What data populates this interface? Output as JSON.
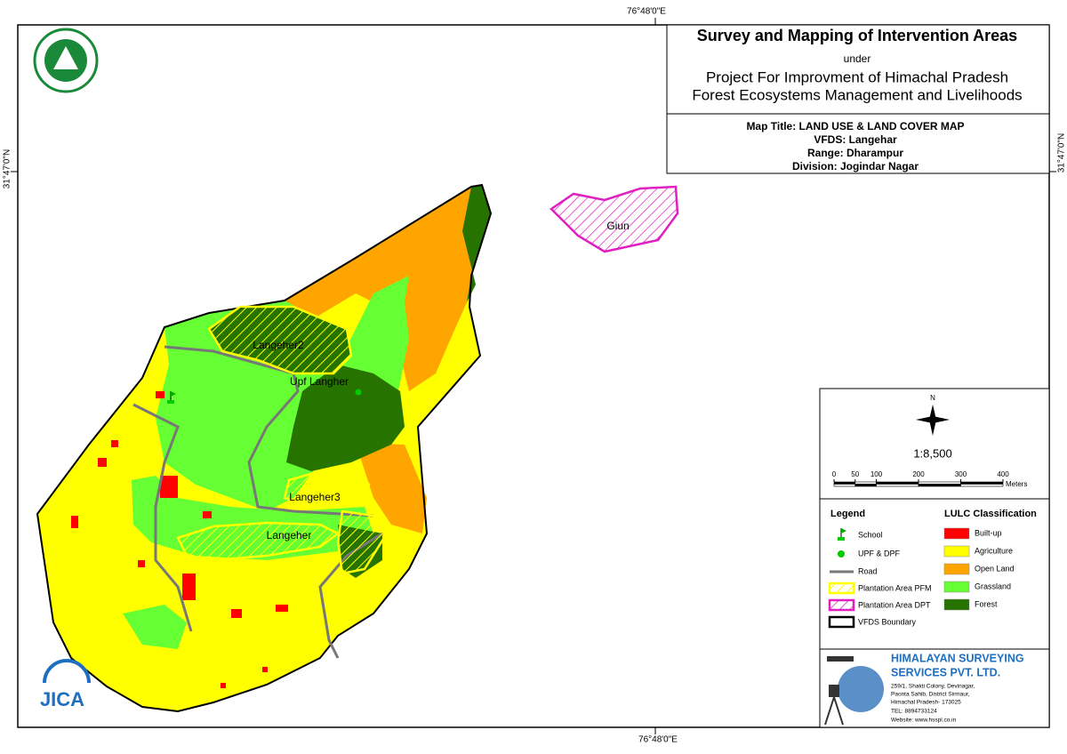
{
  "coordinates": {
    "top": "76°48'0\"E",
    "bottom": "76°48'0\"E",
    "left": "31°47'0\"N",
    "right": "31°47'0\"N"
  },
  "header": {
    "title": "Survey and Mapping of Intervention Areas",
    "under": "under",
    "project": [
      "Project For Improvment of Himachal Pradesh",
      "Forest Ecosystems Management and Livelihoods"
    ]
  },
  "map_info": [
    "Map Title: LAND USE & LAND COVER MAP",
    "VFDS: Langehar",
    "Range: Dharampur",
    "Division: Jogindar Nagar"
  ],
  "map_labels": [
    "Langeher2",
    "Upf Langher",
    "Langeher3",
    "Langeher",
    "Giun"
  ],
  "north": "N",
  "scale": {
    "ratio": "1:8,500",
    "ticks": [
      0,
      50,
      100,
      200,
      300,
      400
    ],
    "unit": "Meters"
  },
  "legend": {
    "title": "Legend",
    "items": [
      "School",
      "UPF & DPF",
      "Road",
      "Plantation Area PFM",
      "Plantation Area DPT",
      "VFDS Boundary"
    ]
  },
  "lulc": {
    "title": "LULC Classification",
    "items": [
      {
        "label": "Built-up",
        "color": "#ff0000"
      },
      {
        "label": "Agriculture",
        "color": "#ffff00"
      },
      {
        "label": "Open Land",
        "color": "#ffa500"
      },
      {
        "label": "Grassland",
        "color": "#66ff33"
      },
      {
        "label": "Forest",
        "color": "#267300"
      }
    ]
  },
  "company": {
    "name": [
      "HIMALAYAN SURVEYING",
      "SERVICES PVT. LTD."
    ],
    "address": [
      "259/1, Shakti Colony, Devinagar,",
      "Paonta Sahib, District Sirmaur,",
      "Himachal Pradesh- 173025",
      "TEL: 8894733124",
      "Website: www.hsspl.co.in"
    ]
  },
  "logos": {
    "jica": "JICA"
  }
}
